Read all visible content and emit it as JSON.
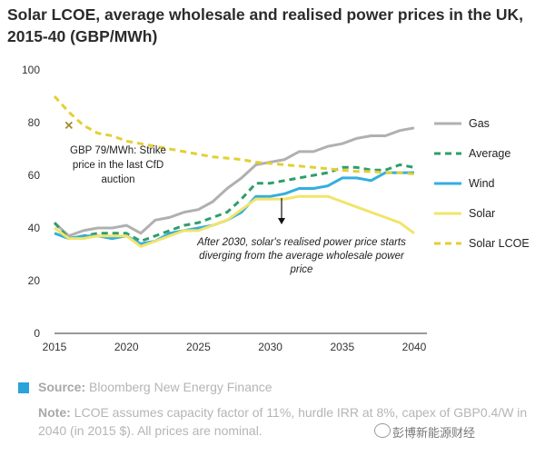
{
  "title": "Solar LCOE, average wholesale and realised power prices in the UK, 2015-40 (GBP/MWh)",
  "footer": {
    "source_label": "Source:",
    "source_text": "Bloomberg New Energy Finance",
    "note_label": "Note:",
    "note_text": "LCOE assumes capacity factor of 11%, hurdle IRR at 8%, capex of GBP0.4/W in 2040 (in 2015 $). All prices are nominal.",
    "source_color": "#29a3d9"
  },
  "watermark": "彭博新能源财经",
  "annotations": {
    "strike_line1": "GBP 79/MWh: Strike",
    "strike_line2": "price in the last CfD",
    "strike_line3": "auction",
    "diverge_line1": "After 2030, solar's realised power price starts",
    "diverge_line2": "diverging from the average wholesale power",
    "diverge_line3": "price"
  },
  "chart_data": {
    "type": "line",
    "title": "Solar LCOE, average wholesale and realised power prices in the UK, 2015-40 (GBP/MWh)",
    "xlabel": "",
    "ylabel": "",
    "xlim": [
      2015,
      2040
    ],
    "ylim": [
      0,
      100
    ],
    "x_ticks": [
      2015,
      2020,
      2025,
      2030,
      2035,
      2040
    ],
    "y_ticks": [
      0,
      20,
      40,
      60,
      80,
      100
    ],
    "grid": false,
    "legend_position": "right",
    "x": [
      2015,
      2016,
      2017,
      2018,
      2019,
      2020,
      2021,
      2022,
      2023,
      2024,
      2025,
      2026,
      2027,
      2028,
      2029,
      2030,
      2031,
      2032,
      2033,
      2034,
      2035,
      2036,
      2037,
      2038,
      2039,
      2040
    ],
    "series": [
      {
        "name": "Gas",
        "color": "#b0b0b0",
        "dash": "solid",
        "values": [
          42,
          37,
          39,
          40,
          40,
          41,
          38,
          43,
          44,
          46,
          47,
          50,
          55,
          59,
          64,
          65,
          66,
          69,
          69,
          71,
          72,
          74,
          75,
          75,
          77,
          78
        ]
      },
      {
        "name": "Average",
        "color": "#2e9e6a",
        "dash": "dashed",
        "values": [
          42,
          36,
          37,
          38,
          38,
          38,
          35,
          37,
          39,
          41,
          42,
          44,
          46,
          51,
          57,
          57,
          58,
          59,
          60,
          61,
          63,
          63,
          62,
          62,
          64,
          63
        ]
      },
      {
        "name": "Wind",
        "color": "#33aee0",
        "dash": "solid",
        "values": [
          38,
          36,
          37,
          37,
          36,
          37,
          34,
          35,
          38,
          39,
          40,
          41,
          43,
          46,
          52,
          52,
          53,
          55,
          55,
          56,
          59,
          59,
          58,
          61,
          61,
          61
        ]
      },
      {
        "name": "Solar",
        "color": "#f2e46a",
        "dash": "solid",
        "values": [
          40,
          36,
          36,
          37,
          37,
          37,
          33,
          35,
          37,
          39,
          39,
          41,
          43,
          47,
          51,
          51,
          51,
          52,
          52,
          52,
          50,
          48,
          46,
          44,
          42,
          38
        ]
      },
      {
        "name": "Solar LCOE",
        "color": "#e3cf34",
        "dash": "dashed",
        "values": [
          90,
          84,
          79,
          76,
          75,
          73,
          72,
          71,
          70,
          69,
          68,
          67,
          66.5,
          66,
          65,
          64.5,
          64,
          63.5,
          63,
          62.5,
          62,
          61.5,
          61.5,
          61,
          61,
          60.5
        ]
      }
    ],
    "markers": [
      {
        "label": "GBP 79/MWh: Strike price in the last CfD auction",
        "x": 2016,
        "y": 79,
        "symbol": "x"
      }
    ]
  }
}
